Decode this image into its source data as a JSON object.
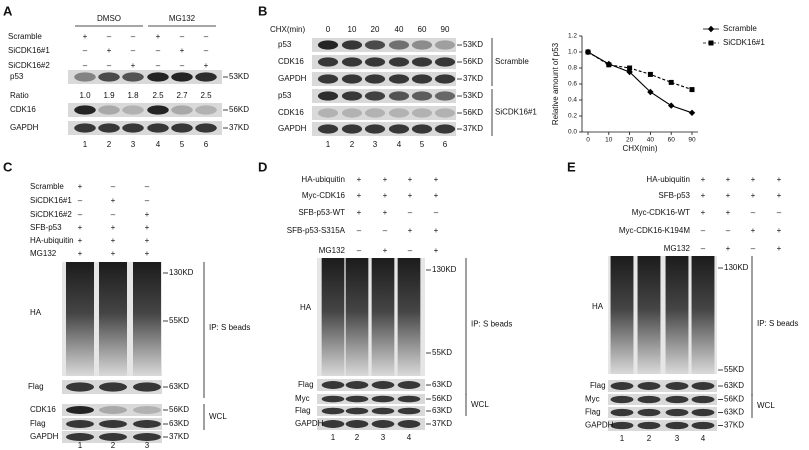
{
  "figure": {
    "panels": [
      {
        "letter": "A",
        "groups": [
          "DMSO",
          "MG132"
        ],
        "conditions": [
          {
            "name": "Scramble",
            "signs": [
              "+",
              "–",
              "–",
              "+",
              "–",
              "–"
            ]
          },
          {
            "name": "SiCDK16#1",
            "signs": [
              "–",
              "+",
              "–",
              "–",
              "+",
              "–"
            ]
          },
          {
            "name": "SiCDK16#2",
            "signs": [
              "–",
              "–",
              "+",
              "–",
              "–",
              "+"
            ]
          }
        ],
        "blots": [
          {
            "name": "p53",
            "marker": "53KD"
          },
          {
            "name": "CDK16",
            "marker": "56KD"
          },
          {
            "name": "GAPDH",
            "marker": "37KD"
          }
        ],
        "ratio": {
          "name": "Ratio",
          "values": [
            "1.0",
            "1.9",
            "1.8",
            "2.5",
            "2.7",
            "2.5"
          ]
        },
        "lanes": [
          "1",
          "2",
          "3",
          "4",
          "5",
          "6"
        ]
      },
      {
        "letter": "B",
        "time_label": "CHX(min)",
        "times": [
          "0",
          "10",
          "20",
          "40",
          "60",
          "90"
        ],
        "groups": [
          {
            "name": "Scramble",
            "blots": [
              {
                "name": "p53",
                "marker": "53KD"
              },
              {
                "name": "CDK16",
                "marker": "56KD"
              },
              {
                "name": "GAPDH",
                "marker": "37KD"
              }
            ]
          },
          {
            "name": "SiCDK16#1",
            "blots": [
              {
                "name": "p53",
                "marker": "53KD"
              },
              {
                "name": "CDK16",
                "marker": "56KD"
              },
              {
                "name": "GAPDH",
                "marker": "37KD"
              }
            ]
          }
        ],
        "lanes": [
          "1",
          "2",
          "3",
          "4",
          "5",
          "6"
        ]
      },
      {
        "letter": "C",
        "conditions": [
          {
            "name": "Scramble",
            "signs": [
              "+",
              "–",
              "–"
            ]
          },
          {
            "name": "SiCDK16#1",
            "signs": [
              "–",
              "+",
              "–"
            ]
          },
          {
            "name": "SiCDK16#2",
            "signs": [
              "–",
              "–",
              "+"
            ]
          },
          {
            "name": "SFB-p53",
            "signs": [
              "+",
              "+",
              "+"
            ]
          },
          {
            "name": "HA-ubiquitin",
            "signs": [
              "+",
              "+",
              "+"
            ]
          },
          {
            "name": "MG132",
            "signs": [
              "+",
              "+",
              "+"
            ]
          }
        ],
        "ip": {
          "blot": "HA",
          "markers": [
            "130KD",
            "55KD"
          ],
          "flag": {
            "name": "Flag",
            "marker": "63KD"
          },
          "label": "IP: S beads"
        },
        "wcl": {
          "label": "WCL",
          "blots": [
            {
              "name": "CDK16",
              "marker": "56KD"
            },
            {
              "name": "Flag",
              "marker": "63KD"
            },
            {
              "name": "GAPDH",
              "marker": "37KD"
            }
          ]
        },
        "lanes": [
          "1",
          "2",
          "3"
        ]
      },
      {
        "letter": "D",
        "conditions": [
          {
            "name": "HA-ubiquitin",
            "signs": [
              "+",
              "+",
              "+",
              "+"
            ]
          },
          {
            "name": "Myc-CDK16",
            "signs": [
              "+",
              "+",
              "+",
              "+"
            ]
          },
          {
            "name": "SFB-p53-WT",
            "signs": [
              "+",
              "+",
              "–",
              "–"
            ]
          },
          {
            "name": "SFB-p53-S315A",
            "signs": [
              "–",
              "–",
              "+",
              "+"
            ]
          },
          {
            "name": "MG132",
            "signs": [
              "–",
              "+",
              "–",
              "+"
            ]
          }
        ],
        "ip": {
          "blot": "HA",
          "markers": [
            "130KD",
            "55KD"
          ],
          "flag": {
            "name": "Flag",
            "marker": "63KD"
          },
          "label": "IP: S beads"
        },
        "wcl": {
          "label": "WCL",
          "blots": [
            {
              "name": "Myc",
              "marker": "56KD"
            },
            {
              "name": "Flag",
              "marker": "63KD"
            },
            {
              "name": "GAPDH",
              "marker": "37KD"
            }
          ]
        },
        "lanes": [
          "1",
          "2",
          "3",
          "4"
        ]
      },
      {
        "letter": "E",
        "conditions": [
          {
            "name": "HA-ubiquitin",
            "signs": [
              "+",
              "+",
              "+",
              "+"
            ]
          },
          {
            "name": "SFB-p53",
            "signs": [
              "+",
              "+",
              "+",
              "+"
            ]
          },
          {
            "name": "Myc-CDK16-WT",
            "signs": [
              "+",
              "+",
              "–",
              "–"
            ]
          },
          {
            "name": "Myc-CDK16-K194M",
            "signs": [
              "–",
              "–",
              "+",
              "+"
            ]
          },
          {
            "name": "MG132",
            "signs": [
              "–",
              "+",
              "–",
              "+"
            ]
          }
        ],
        "ip": {
          "blot": "HA",
          "markers": [
            "130KD",
            "55KD"
          ],
          "flag": {
            "name": "Flag",
            "marker": "63KD"
          },
          "label": "IP: S beads"
        },
        "wcl": {
          "label": "WCL",
          "blots": [
            {
              "name": "Myc",
              "marker": "56KD"
            },
            {
              "name": "Flag",
              "marker": "63KD"
            },
            {
              "name": "GAPDH",
              "marker": "37KD"
            }
          ]
        },
        "lanes": [
          "1",
          "2",
          "3",
          "4"
        ]
      }
    ]
  },
  "chart_data": {
    "type": "line",
    "x_label": "CHX(min)",
    "y_label": "Relative amount of p53",
    "categories": [
      "0",
      "10",
      "20",
      "40",
      "60",
      "90"
    ],
    "series": [
      {
        "name": "Scramble",
        "color": "#000000",
        "linestyle": "solid",
        "marker": "diamond",
        "values": [
          1.0,
          0.85,
          0.75,
          0.5,
          0.33,
          0.24
        ]
      },
      {
        "name": "SiCDK16#1",
        "color": "#000000",
        "linestyle": "dashed",
        "marker": "square",
        "values": [
          1.0,
          0.84,
          0.8,
          0.72,
          0.62,
          0.53
        ]
      }
    ],
    "ylim": [
      0,
      1.2
    ],
    "yticks": [
      {
        "value": 0,
        "label": "0.0"
      },
      0.2,
      0.4,
      0.6,
      0.8,
      {
        "value": 1,
        "label": "1.0"
      },
      1.2
    ],
    "legend": "upper right"
  }
}
